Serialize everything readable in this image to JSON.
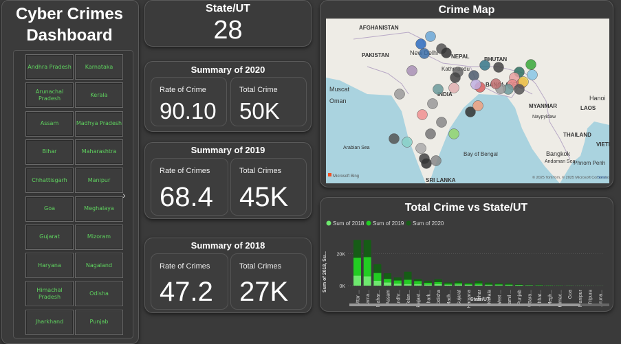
{
  "dashboard": {
    "title": "Cyber Crimes Dashboard"
  },
  "sidebar": {
    "states": [
      "Andhra Pradesh",
      "Karnataka",
      "Arunachal Pradesh",
      "Kerala",
      "Assam",
      "Madhya Pradesh",
      "Bihar",
      "Maharashtra",
      "Chhattisgarh",
      "Manipur",
      "Goa",
      "Meghalaya",
      "Gujarat",
      "Mizoram",
      "Haryana",
      "Nagaland",
      "Himachal Pradesh",
      "Odisha",
      "Jharkhand",
      "Punjab"
    ],
    "next_icon": "chevron-right-icon"
  },
  "state_card": {
    "title": "State/UT",
    "value": "28"
  },
  "summary_2020": {
    "title": "Summary of 2020",
    "rate_label": "Rate of Crime",
    "rate_value": "90.10",
    "total_label": "Total Crime",
    "total_value": "50K"
  },
  "summary_2019": {
    "title": "Summary of 2019",
    "rate_label": "Rate of Crimes",
    "rate_value": "68.4",
    "total_label": "Total Crimes",
    "total_value": "45K"
  },
  "summary_2018": {
    "title": "Summary of 2018",
    "rate_label": "Rate of Crimes",
    "rate_value": "47.2",
    "total_label": "Total Crimes",
    "total_value": "27K"
  },
  "map": {
    "title": "Crime Map",
    "labels": [
      "AFGHANISTAN",
      "PAKISTAN",
      "New Delhi",
      "NEPAL",
      "BHUTAN",
      "Kathmandu",
      "Muscat",
      "Oman",
      "INDIA",
      "BANGLADESH",
      "MYANMAR",
      "LAOS",
      "Hanoi",
      "Naypyidaw",
      "THAILAND",
      "VIETN",
      "Arabian Sea",
      "Bay of Bengal",
      "Bangkok",
      "Andaman Sea",
      "Phnom Penh",
      "SRI LANKA"
    ],
    "attribution": "© 2025 TomTom, © 2025 Microsoft Corporation, © OpenStreetMap",
    "terms": "Terms",
    "brand": "Microsoft Bing",
    "colors": {
      "land": "#eeece6",
      "water": "#aad3df"
    }
  },
  "chart_data": {
    "type": "bar",
    "title": "Total Crime vs State/UT",
    "xlabel": "State/UT",
    "ylabel": "Sum of 2018, Su...",
    "ylim": [
      0,
      30000
    ],
    "yticks": [
      "0K",
      "20K"
    ],
    "stacked": true,
    "categories": [
      "Uttar ...",
      "Karna...",
      "Mahar...",
      "Assam",
      "Andhr...",
      "Telan...",
      "Rajast...",
      "Jhark...",
      "Odisha",
      "Madh...",
      "Gujarat",
      "Haryana",
      "Bihar",
      "Kerala",
      "West ...",
      "Tamil ...",
      "Punjab",
      "Uttara...",
      "Chhat...",
      "Megh...",
      "Himac...",
      "Goa",
      "Manipur",
      "Tripura",
      "Aruna..."
    ],
    "series": [
      {
        "name": "Sum of 2018",
        "color": "#6ee86e",
        "values": [
          6200,
          5800,
          3000,
          2000,
          1300,
          1000,
          950,
          700,
          900,
          500,
          700,
          500,
          400,
          380,
          300,
          220,
          200,
          150,
          100,
          70,
          60,
          40,
          20,
          15,
          10
        ]
      },
      {
        "name": "Sum of 2019",
        "color": "#22cc22",
        "values": [
          11200,
          12000,
          4900,
          2200,
          1900,
          2700,
          1900,
          1100,
          1300,
          700,
          800,
          600,
          1000,
          300,
          500,
          400,
          240,
          170,
          170,
          90,
          70,
          50,
          25,
          15,
          10
        ]
      },
      {
        "name": "Sum of 2020",
        "color": "#165c16",
        "values": [
          11100,
          10700,
          5500,
          3500,
          1900,
          5000,
          1350,
          1250,
          1900,
          800,
          1300,
          600,
          1600,
          1200,
          700,
          800,
          380,
          240,
          300,
          140,
          100,
          40,
          20,
          20,
          10
        ]
      }
    ],
    "legend_position": "top-left",
    "grid": true
  }
}
